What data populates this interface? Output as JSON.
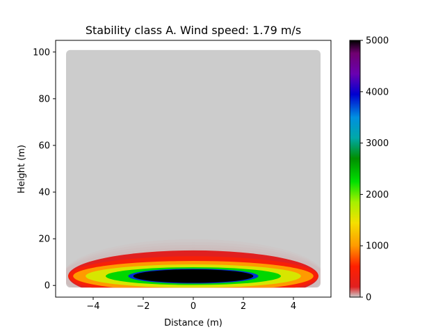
{
  "chart_data": {
    "type": "heatmap",
    "title": "Stability class A. Wind speed: 1.79 m/s",
    "xlabel": "Distance (m)",
    "ylabel": "Height (m)",
    "xlim": [
      -5.5,
      5.5
    ],
    "ylim": [
      -5,
      105
    ],
    "x_ticks": [
      -4,
      -2,
      0,
      2,
      4
    ],
    "x_tick_labels": [
      "−4",
      "−2",
      "0",
      "2",
      "4"
    ],
    "y_ticks": [
      0,
      20,
      40,
      60,
      80,
      100
    ],
    "y_tick_labels": [
      "0",
      "20",
      "40",
      "60",
      "80",
      "100"
    ],
    "data_extent": {
      "x": [
        -5,
        5
      ],
      "y": [
        0,
        100
      ]
    },
    "background_value": 0,
    "plume": {
      "center_x": 0,
      "center_y": 4,
      "rings": [
        {
          "value": 200,
          "half_width_x": 5.0,
          "half_height_y": 11.0
        },
        {
          "value": 500,
          "half_width_x": 5.0,
          "half_height_y": 8.5
        },
        {
          "value": 1000,
          "half_width_x": 4.8,
          "half_height_y": 6.5
        },
        {
          "value": 1600,
          "half_width_x": 4.3,
          "half_height_y": 5.0
        },
        {
          "value": 2300,
          "half_width_x": 3.5,
          "half_height_y": 3.8
        },
        {
          "value": 3800,
          "half_width_x": 2.6,
          "half_height_y": 3.2
        },
        {
          "value": 5000,
          "half_width_x": 2.4,
          "half_height_y": 2.9
        }
      ]
    },
    "colorbar": {
      "min": 0,
      "max": 5000,
      "ticks": [
        0,
        1000,
        2000,
        3000,
        4000,
        5000
      ],
      "tick_labels": [
        "0",
        "1000",
        "2000",
        "3000",
        "4000",
        "5000"
      ],
      "colormap": [
        {
          "stop": 0.0,
          "color": "#cccccc"
        },
        {
          "stop": 0.04,
          "color": "#e02020"
        },
        {
          "stop": 0.12,
          "color": "#ff2000"
        },
        {
          "stop": 0.2,
          "color": "#ff9a00"
        },
        {
          "stop": 0.29,
          "color": "#f4e000"
        },
        {
          "stop": 0.37,
          "color": "#a6f000"
        },
        {
          "stop": 0.45,
          "color": "#00e000"
        },
        {
          "stop": 0.54,
          "color": "#008f00"
        },
        {
          "stop": 0.62,
          "color": "#00a8a8"
        },
        {
          "stop": 0.7,
          "color": "#0090e0"
        },
        {
          "stop": 0.79,
          "color": "#0000d0"
        },
        {
          "stop": 0.87,
          "color": "#6a00b0"
        },
        {
          "stop": 0.95,
          "color": "#700070"
        },
        {
          "stop": 1.0,
          "color": "#000000"
        }
      ]
    }
  }
}
